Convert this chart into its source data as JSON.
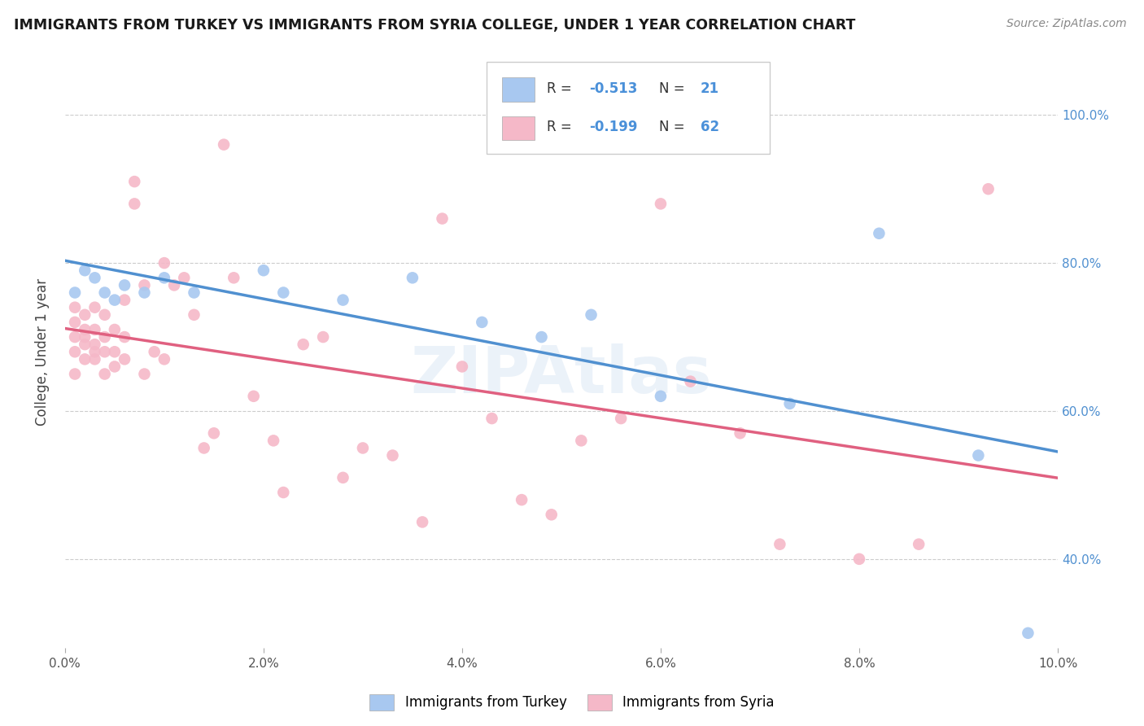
{
  "title": "IMMIGRANTS FROM TURKEY VS IMMIGRANTS FROM SYRIA COLLEGE, UNDER 1 YEAR CORRELATION CHART",
  "source": "Source: ZipAtlas.com",
  "ylabel": "College, Under 1 year",
  "legend_labels": [
    "Immigrants from Turkey",
    "Immigrants from Syria"
  ],
  "R_turkey": -0.513,
  "N_turkey": 21,
  "R_syria": -0.199,
  "N_syria": 62,
  "color_turkey": "#a8c8f0",
  "color_syria": "#f5b8c8",
  "line_color_turkey": "#5090d0",
  "line_color_syria": "#e06080",
  "xlim": [
    0.0,
    0.1
  ],
  "ylim": [
    0.28,
    1.08
  ],
  "yticks": [
    0.4,
    0.6,
    0.8,
    1.0
  ],
  "ytick_labels": [
    "40.0%",
    "60.0%",
    "80.0%",
    "100.0%"
  ],
  "xticks": [
    0.0,
    0.02,
    0.04,
    0.06,
    0.08,
    0.1
  ],
  "xtick_labels": [
    "0.0%",
    "2.0%",
    "4.0%",
    "6.0%",
    "8.0%",
    "10.0%"
  ],
  "turkey_points_x": [
    0.001,
    0.002,
    0.003,
    0.004,
    0.005,
    0.006,
    0.008,
    0.01,
    0.013,
    0.02,
    0.022,
    0.028,
    0.035,
    0.042,
    0.048,
    0.053,
    0.06,
    0.073,
    0.082,
    0.092,
    0.097
  ],
  "turkey_points_y": [
    0.76,
    0.79,
    0.78,
    0.76,
    0.75,
    0.77,
    0.76,
    0.78,
    0.76,
    0.79,
    0.76,
    0.75,
    0.78,
    0.72,
    0.7,
    0.73,
    0.62,
    0.61,
    0.84,
    0.54,
    0.3
  ],
  "syria_points_x": [
    0.001,
    0.001,
    0.001,
    0.001,
    0.001,
    0.002,
    0.002,
    0.002,
    0.002,
    0.002,
    0.003,
    0.003,
    0.003,
    0.003,
    0.003,
    0.004,
    0.004,
    0.004,
    0.004,
    0.005,
    0.005,
    0.005,
    0.006,
    0.006,
    0.006,
    0.007,
    0.007,
    0.008,
    0.008,
    0.009,
    0.01,
    0.01,
    0.011,
    0.012,
    0.013,
    0.014,
    0.015,
    0.016,
    0.017,
    0.019,
    0.021,
    0.022,
    0.024,
    0.026,
    0.028,
    0.03,
    0.033,
    0.036,
    0.038,
    0.04,
    0.043,
    0.046,
    0.049,
    0.052,
    0.056,
    0.06,
    0.063,
    0.068,
    0.072,
    0.08,
    0.086,
    0.093
  ],
  "syria_points_y": [
    0.68,
    0.7,
    0.72,
    0.74,
    0.65,
    0.69,
    0.71,
    0.73,
    0.67,
    0.7,
    0.68,
    0.71,
    0.74,
    0.67,
    0.69,
    0.68,
    0.7,
    0.73,
    0.65,
    0.68,
    0.71,
    0.66,
    0.67,
    0.7,
    0.75,
    0.88,
    0.91,
    0.65,
    0.77,
    0.68,
    0.67,
    0.8,
    0.77,
    0.78,
    0.73,
    0.55,
    0.57,
    0.96,
    0.78,
    0.62,
    0.56,
    0.49,
    0.69,
    0.7,
    0.51,
    0.55,
    0.54,
    0.45,
    0.86,
    0.66,
    0.59,
    0.48,
    0.46,
    0.56,
    0.59,
    0.88,
    0.64,
    0.57,
    0.42,
    0.4,
    0.42,
    0.9
  ]
}
